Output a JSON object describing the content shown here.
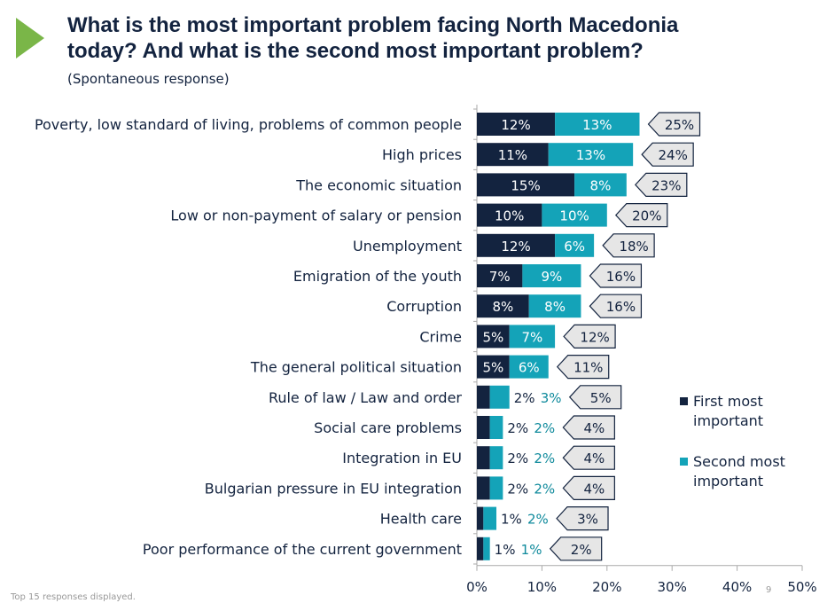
{
  "header": {
    "title_line1": "What is the most important problem facing North Macedonia",
    "title_line2": "today? And what is the second most important problem?",
    "subtitle": "(Spontaneous response)"
  },
  "footer": {
    "note": "Top 15 responses displayed.",
    "page": "9"
  },
  "chart_data": {
    "type": "bar",
    "orientation": "horizontal",
    "stacked": true,
    "categories": [
      "Poverty, low standard of living, problems of common people",
      "High prices",
      "The economic situation",
      "Low or non-payment of salary or pension",
      "Unemployment",
      "Emigration of the youth",
      "Corruption",
      "Crime",
      "The general political situation",
      "Rule of law / Law and order",
      "Social care problems",
      "Integration in EU",
      "Bulgarian pressure in EU integration",
      "Health care",
      "Poor performance of the current government"
    ],
    "series": [
      {
        "name": "First most important",
        "color": "#13233f",
        "values": [
          12,
          11,
          15,
          10,
          12,
          7,
          8,
          5,
          5,
          2,
          2,
          2,
          2,
          1,
          1
        ]
      },
      {
        "name": "Second most important",
        "color": "#14a3b8",
        "values": [
          13,
          13,
          8,
          10,
          6,
          9,
          8,
          7,
          6,
          3,
          2,
          2,
          2,
          2,
          1
        ]
      }
    ],
    "totals": [
      25,
      24,
      23,
      20,
      18,
      16,
      16,
      12,
      11,
      5,
      4,
      4,
      4,
      3,
      2
    ],
    "xlim": [
      0,
      50
    ],
    "xticks": [
      "0%",
      "10%",
      "20%",
      "30%",
      "40%",
      "50%"
    ],
    "legend": "right",
    "grid": false
  }
}
